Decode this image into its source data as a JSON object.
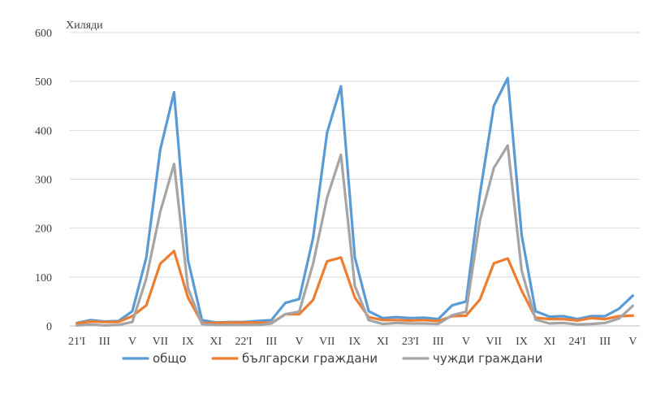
{
  "chart_data": {
    "type": "line",
    "unit_label": "Хиляди",
    "ylim": [
      0,
      600
    ],
    "yticks": [
      0,
      100,
      200,
      300,
      400,
      500,
      600
    ],
    "grid": true,
    "legend_position": "bottom",
    "x_tick_labels": [
      "21'I",
      "III",
      "V",
      "VII",
      "IX",
      "XI",
      "22'I",
      "III",
      "V",
      "VII",
      "IX",
      "XI",
      "23'I",
      "III",
      "V",
      "VII",
      "IX",
      "XI",
      "24'I",
      "III",
      "V"
    ],
    "x": [
      "21'I",
      "21'II",
      "21'III",
      "21'IV",
      "21'V",
      "21'VI",
      "21'VII",
      "21'VIII",
      "21'IX",
      "21'X",
      "21'XI",
      "21'XII",
      "22'I",
      "22'II",
      "22'III",
      "22'IV",
      "22'V",
      "22'VI",
      "22'VII",
      "22'VIII",
      "22'IX",
      "22'X",
      "22'XI",
      "22'XII",
      "23'I",
      "23'II",
      "23'III",
      "23'IV",
      "23'V",
      "23'VI",
      "23'VII",
      "23'VIII",
      "23'IX",
      "23'X",
      "23'XI",
      "23'XII",
      "24'I",
      "24'II",
      "24'III",
      "24'IV",
      "24'V"
    ],
    "series": [
      {
        "name": "общо",
        "color": "#5b9bd5",
        "values": [
          6,
          12,
          9,
          10,
          30,
          140,
          360,
          478,
          135,
          12,
          7,
          8,
          8,
          10,
          12,
          47,
          55,
          180,
          395,
          490,
          140,
          30,
          16,
          18,
          16,
          17,
          14,
          42,
          50,
          270,
          450,
          507,
          185,
          30,
          19,
          20,
          14,
          20,
          20,
          35,
          62
        ]
      },
      {
        "name": "български граждани",
        "color": "#ed7d31",
        "values": [
          5,
          9,
          8,
          8,
          20,
          42,
          127,
          153,
          58,
          6,
          6,
          7,
          7,
          7,
          6,
          24,
          24,
          53,
          132,
          140,
          58,
          18,
          12,
          12,
          11,
          12,
          10,
          20,
          21,
          54,
          128,
          138,
          72,
          17,
          14,
          14,
          11,
          16,
          14,
          20,
          21
        ]
      },
      {
        "name": "чужди граждани",
        "color": "#a5a5a5",
        "values": [
          1,
          3,
          1,
          2,
          8,
          97,
          233,
          331,
          77,
          4,
          2,
          2,
          2,
          2,
          5,
          24,
          29,
          127,
          262,
          350,
          82,
          12,
          4,
          6,
          5,
          5,
          4,
          22,
          29,
          216,
          323,
          369,
          113,
          13,
          5,
          6,
          3,
          4,
          6,
          15,
          41
        ]
      }
    ]
  }
}
